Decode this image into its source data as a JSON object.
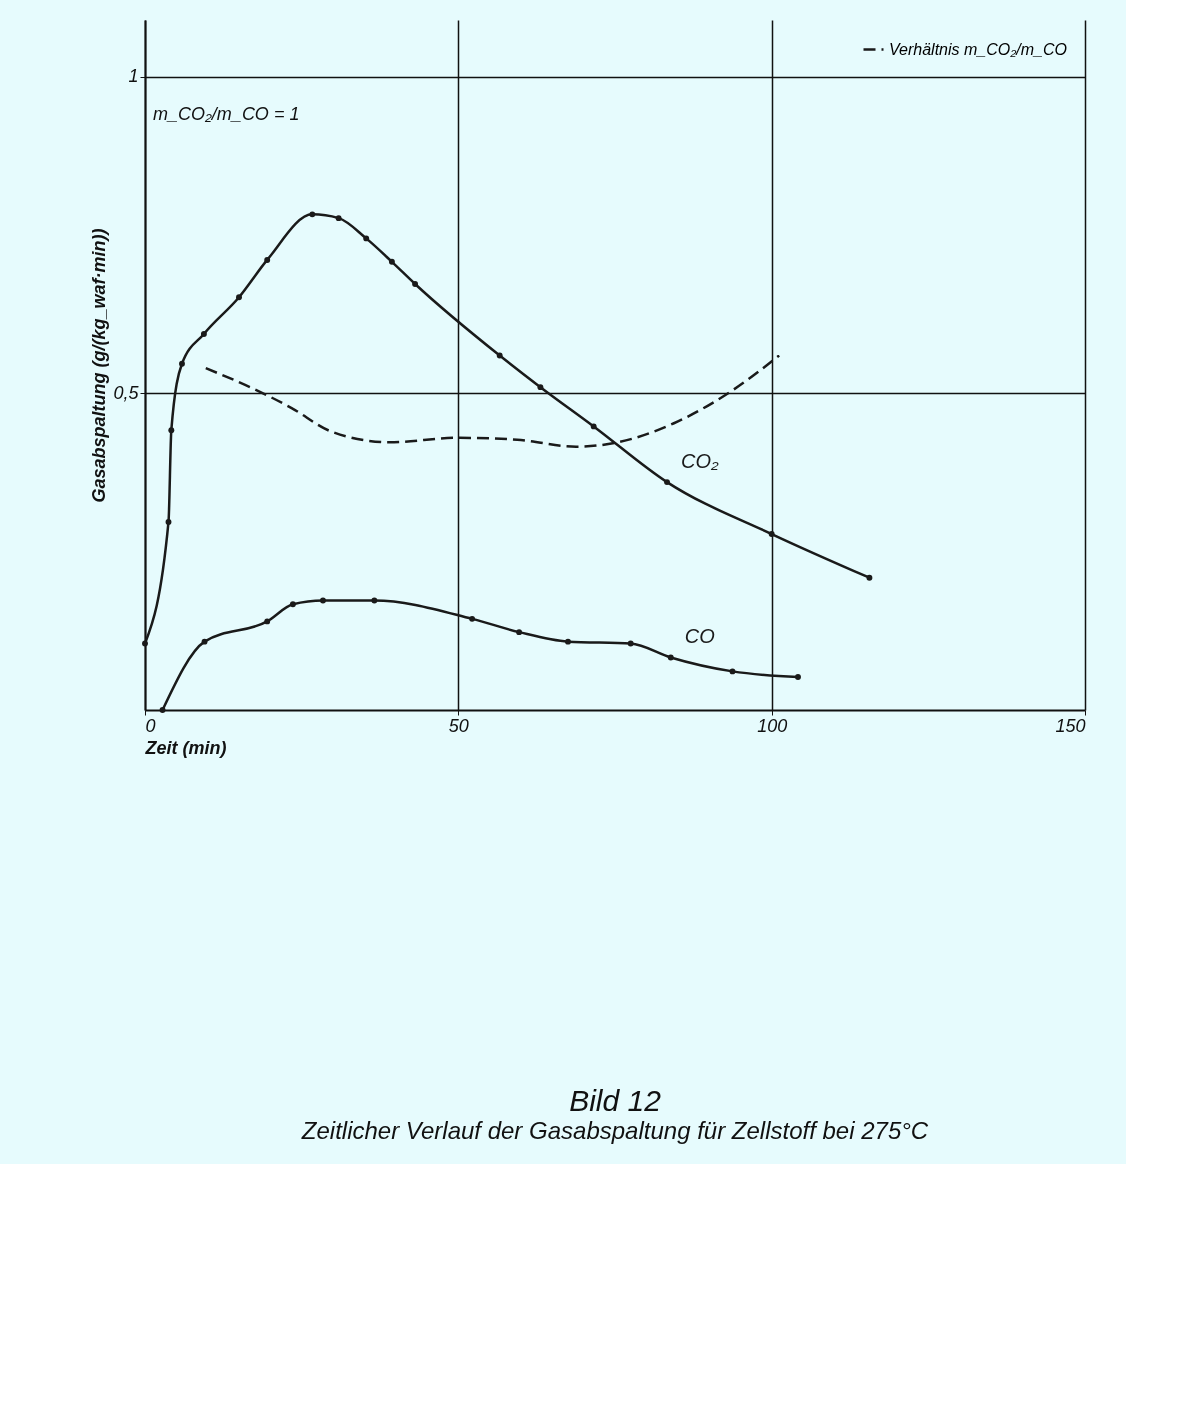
{
  "chart_data": {
    "type": "line",
    "title": "Bild 12",
    "subtitle": "Zeitlicher Verlauf der Gasabspaltung für Zellstoff  bei 275°C",
    "xlabel": "Zeit (min)",
    "ylabel": "Gasabspaltung (g/(kg_waf·min))",
    "xlim": [
      0,
      150
    ],
    "xticks": [
      0,
      50,
      100,
      150
    ],
    "ylim": [
      0,
      1.09
    ],
    "yticks": [
      {
        "value": 0.5,
        "label": "0,5"
      },
      1
    ],
    "grid": true,
    "marker": "circle",
    "line_style": "solid",
    "legend": "top right",
    "annotations": [
      "m_CO₂/m_CO = 1"
    ],
    "series": [
      {
        "name": "CO₂",
        "color": "#1a1a1a",
        "x": [
          0,
          3.75,
          4.2,
          5.9,
          9.4,
          15,
          19.5,
          26.7,
          30.9,
          35.3,
          39.4,
          43.1,
          56.6,
          63.1,
          71.6,
          83.3,
          100,
          115.6
        ],
        "values": [
          0.105,
          0.297,
          0.442,
          0.547,
          0.594,
          0.652,
          0.711,
          0.783,
          0.777,
          0.745,
          0.708,
          0.673,
          0.56,
          0.51,
          0.448,
          0.36,
          0.278,
          0.209
        ]
      },
      {
        "name": "CO",
        "color": "#1a1a1a",
        "x": [
          2.8,
          9.5,
          19.5,
          23.6,
          28.4,
          36.6,
          52.2,
          59.7,
          67.5,
          77.5,
          83.9,
          93.75,
          104.2
        ],
        "values": [
          0,
          0.108,
          0.14,
          0.167,
          0.173,
          0.173,
          0.144,
          0.123,
          0.108,
          0.105,
          0.083,
          0.061,
          0.052
        ]
      },
      {
        "name": "Verhältnis m_CO₂/m_CO",
        "color": "#1a1a1a",
        "marker": "none",
        "line_style": "dashed",
        "x": [
          9.7,
          17.2,
          23.4,
          29.7,
          39,
          50,
          59.4,
          68.8,
          75,
          84.4,
          93.75,
          101.2
        ],
        "values": [
          0.54,
          0.508,
          0.477,
          0.44,
          0.423,
          0.43,
          0.427,
          0.416,
          0.422,
          0.453,
          0.505,
          0.56
        ]
      }
    ]
  }
}
